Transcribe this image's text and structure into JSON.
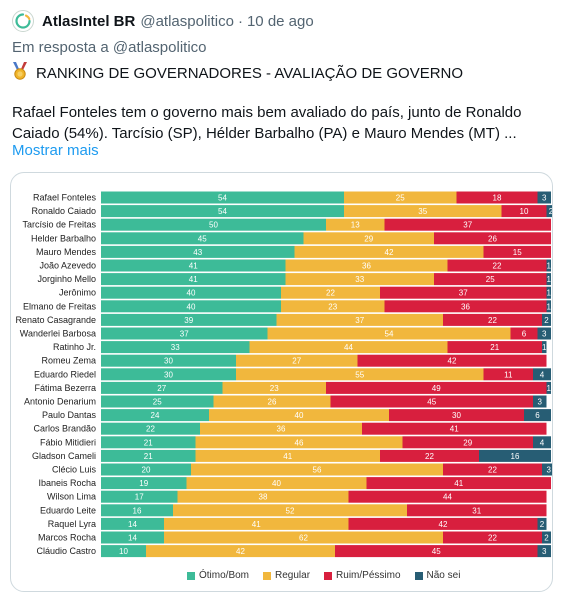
{
  "tweet": {
    "author": "AtlasIntel BR",
    "handle": "@atlaspolitico",
    "separator": "·",
    "time": "10 de ago",
    "reply_prefix": "Em resposta a",
    "reply_handle": "@atlaspolitico",
    "headline": "RANKING DE GOVERNADORES - AVALIAÇÃO DE GOVERNO",
    "body": "Rafael Fonteles tem o governo mais bem avaliado do país, junto de Ronaldo Caiado (54%). Tarcísio (SP), Hélder Barbalho (PA) e Mauro Mendes (MT) ...",
    "show_more": "Mostrar mais"
  },
  "colors": {
    "otimo": "#3dbb98",
    "regular": "#f1b73d",
    "ruim": "#d81f3e",
    "naosei": "#275d74"
  },
  "chart_data": {
    "type": "bar",
    "orientation": "horizontal",
    "stacked": true,
    "categories": [
      "Rafael Fonteles",
      "Ronaldo Caiado",
      "Tarcísio de Freitas",
      "Helder Barbalho",
      "Mauro Mendes",
      "João Azevedo",
      "Jorginho Mello",
      "Jerônimo",
      "Elmano de Freitas",
      "Renato Casagrande",
      "Wanderlei Barbosa",
      "Ratinho Jr.",
      "Romeu Zema",
      "Eduardo Riedel",
      "Fátima Bezerra",
      "Antonio Denarium",
      "Paulo Dantas",
      "Carlos Brandão",
      "Fábio Mitidieri",
      "Gladson Cameli",
      "Clécio Luis",
      "Ibaneis Rocha",
      "Wilson Lima",
      "Eduardo Leite",
      "Raquel Lyra",
      "Marcos Rocha",
      "Cláudio Castro"
    ],
    "series": [
      {
        "name": "Ótimo/Bom",
        "values": [
          54,
          54,
          50,
          45,
          43,
          41,
          41,
          40,
          40,
          39,
          37,
          33,
          30,
          30,
          27,
          25,
          24,
          22,
          21,
          21,
          20,
          19,
          17,
          16,
          14,
          14,
          10
        ]
      },
      {
        "name": "Regular",
        "values": [
          25,
          35,
          13,
          29,
          42,
          36,
          33,
          22,
          23,
          37,
          54,
          44,
          27,
          55,
          23,
          26,
          40,
          36,
          46,
          41,
          56,
          40,
          38,
          52,
          41,
          62,
          42
        ]
      },
      {
        "name": "Ruim/Péssimo",
        "values": [
          18,
          10,
          37,
          26,
          15,
          22,
          25,
          37,
          36,
          22,
          6,
          21,
          42,
          11,
          49,
          45,
          30,
          41,
          29,
          22,
          22,
          41,
          44,
          31,
          42,
          22,
          45
        ]
      },
      {
        "name": "Não sei",
        "values": [
          3,
          2,
          0,
          0,
          0,
          1,
          1,
          1,
          1,
          2,
          3,
          1,
          0,
          4,
          1,
          3,
          6,
          0,
          4,
          16,
          3,
          0,
          0,
          0,
          2,
          2,
          3
        ]
      }
    ],
    "xlim": [
      0,
      100
    ],
    "legend": "bottom"
  }
}
